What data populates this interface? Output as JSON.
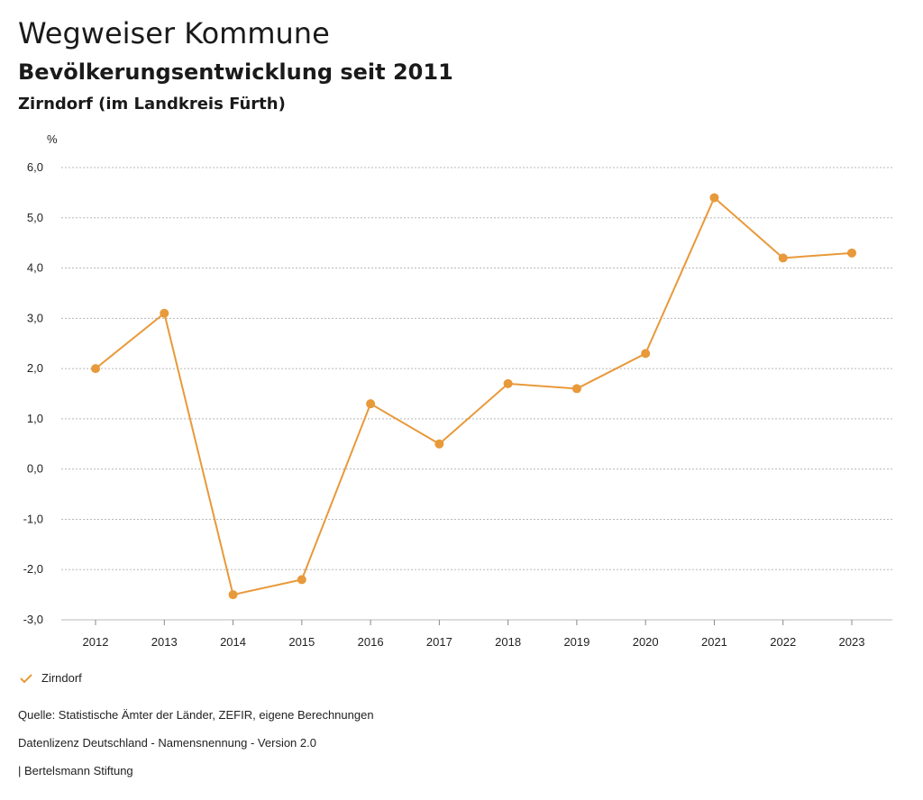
{
  "header": {
    "title": "Wegweiser Kommune",
    "subtitle": "Bevölkerungsentwicklung seit 2011",
    "region": "Zirndorf (im Landkreis Fürth)"
  },
  "colors": {
    "series": "#e8993a",
    "grid": "#b8b8b8",
    "text": "#222222"
  },
  "chart_data": {
    "type": "line",
    "title": "Bevölkerungsentwicklung seit 2011",
    "ylabel": "%",
    "xlabel": "",
    "ylim": [
      -3.0,
      6.0
    ],
    "y_ticks": [
      -3.0,
      -2.0,
      -1.0,
      0.0,
      1.0,
      2.0,
      3.0,
      4.0,
      5.0,
      6.0
    ],
    "y_tick_labels": [
      "-3,0",
      "-2,0",
      "-1,0",
      "0,0",
      "1,0",
      "2,0",
      "3,0",
      "4,0",
      "5,0",
      "6,0"
    ],
    "categories": [
      "2012",
      "2013",
      "2014",
      "2015",
      "2016",
      "2017",
      "2018",
      "2019",
      "2020",
      "2021",
      "2022",
      "2023"
    ],
    "series": [
      {
        "name": "Zirndorf",
        "values": [
          2.0,
          3.1,
          -2.5,
          -2.2,
          1.3,
          0.5,
          1.7,
          1.6,
          2.3,
          5.4,
          4.2,
          4.3
        ]
      }
    ],
    "grid": true,
    "legend": "bottom-left"
  },
  "legend": {
    "label": "Zirndorf",
    "icon": "check-icon"
  },
  "footer": {
    "source": "Quelle: Statistische Ämter der Länder, ZEFIR, eigene Berechnungen",
    "license": "Datenlizenz Deutschland - Namensnennung - Version 2.0",
    "brand": "| Bertelsmann Stiftung"
  }
}
